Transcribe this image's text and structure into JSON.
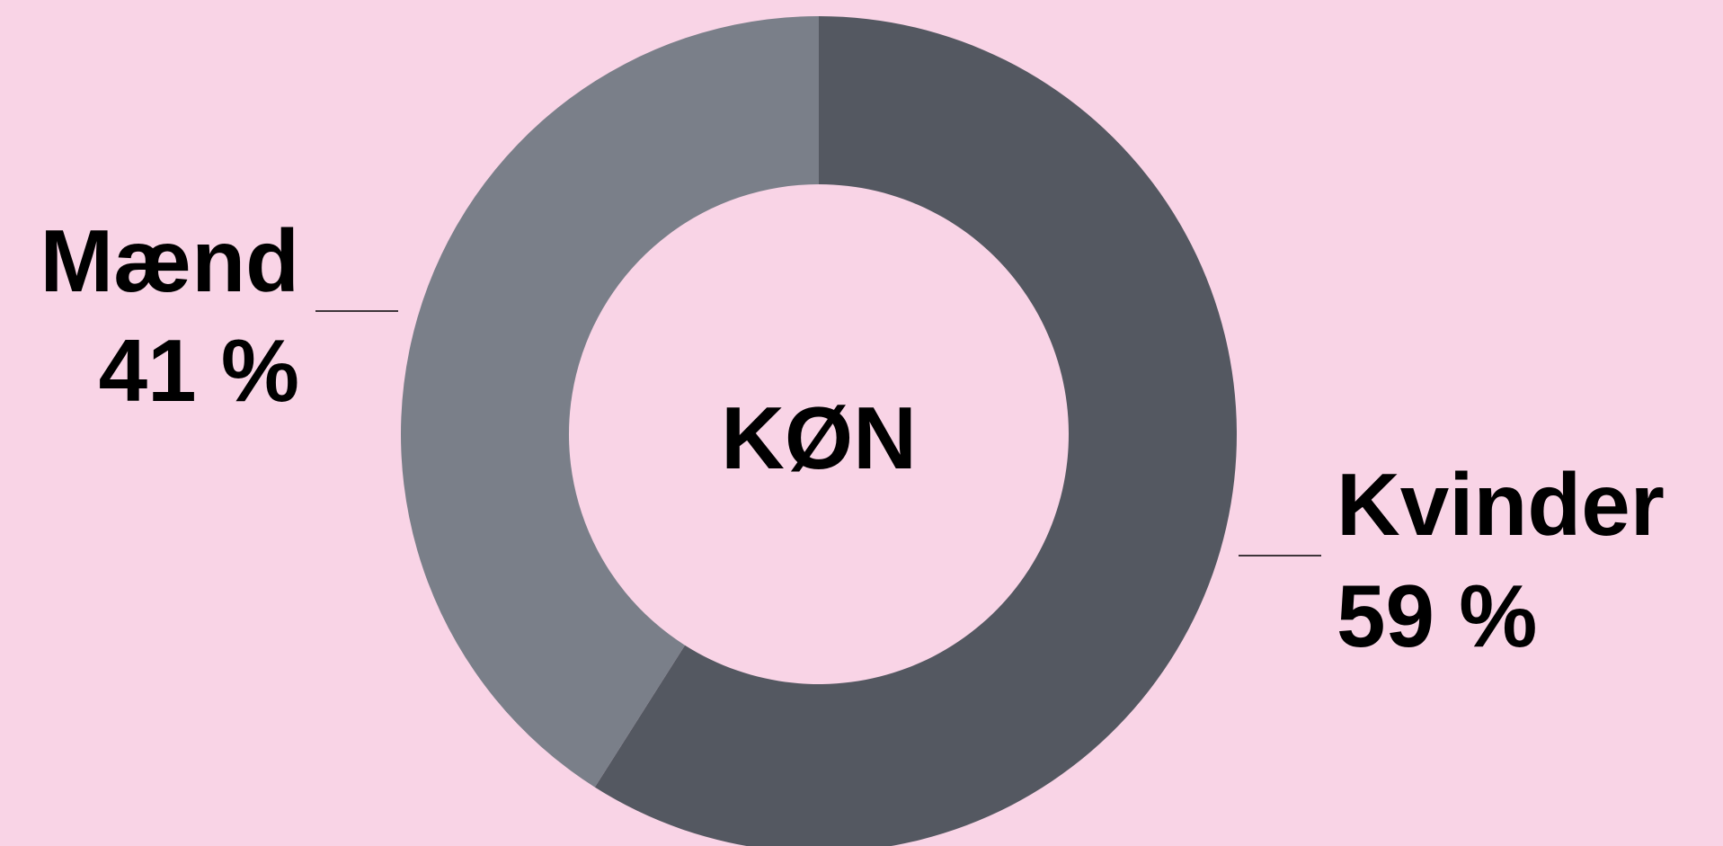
{
  "chart_data": {
    "type": "donut",
    "title": "KØN",
    "categories": [
      "Kvinder",
      "Mænd"
    ],
    "values": [
      59,
      41
    ],
    "value_labels": [
      "59 %",
      "41 %"
    ],
    "colors": [
      "#545861",
      "#7a7f89"
    ]
  }
}
